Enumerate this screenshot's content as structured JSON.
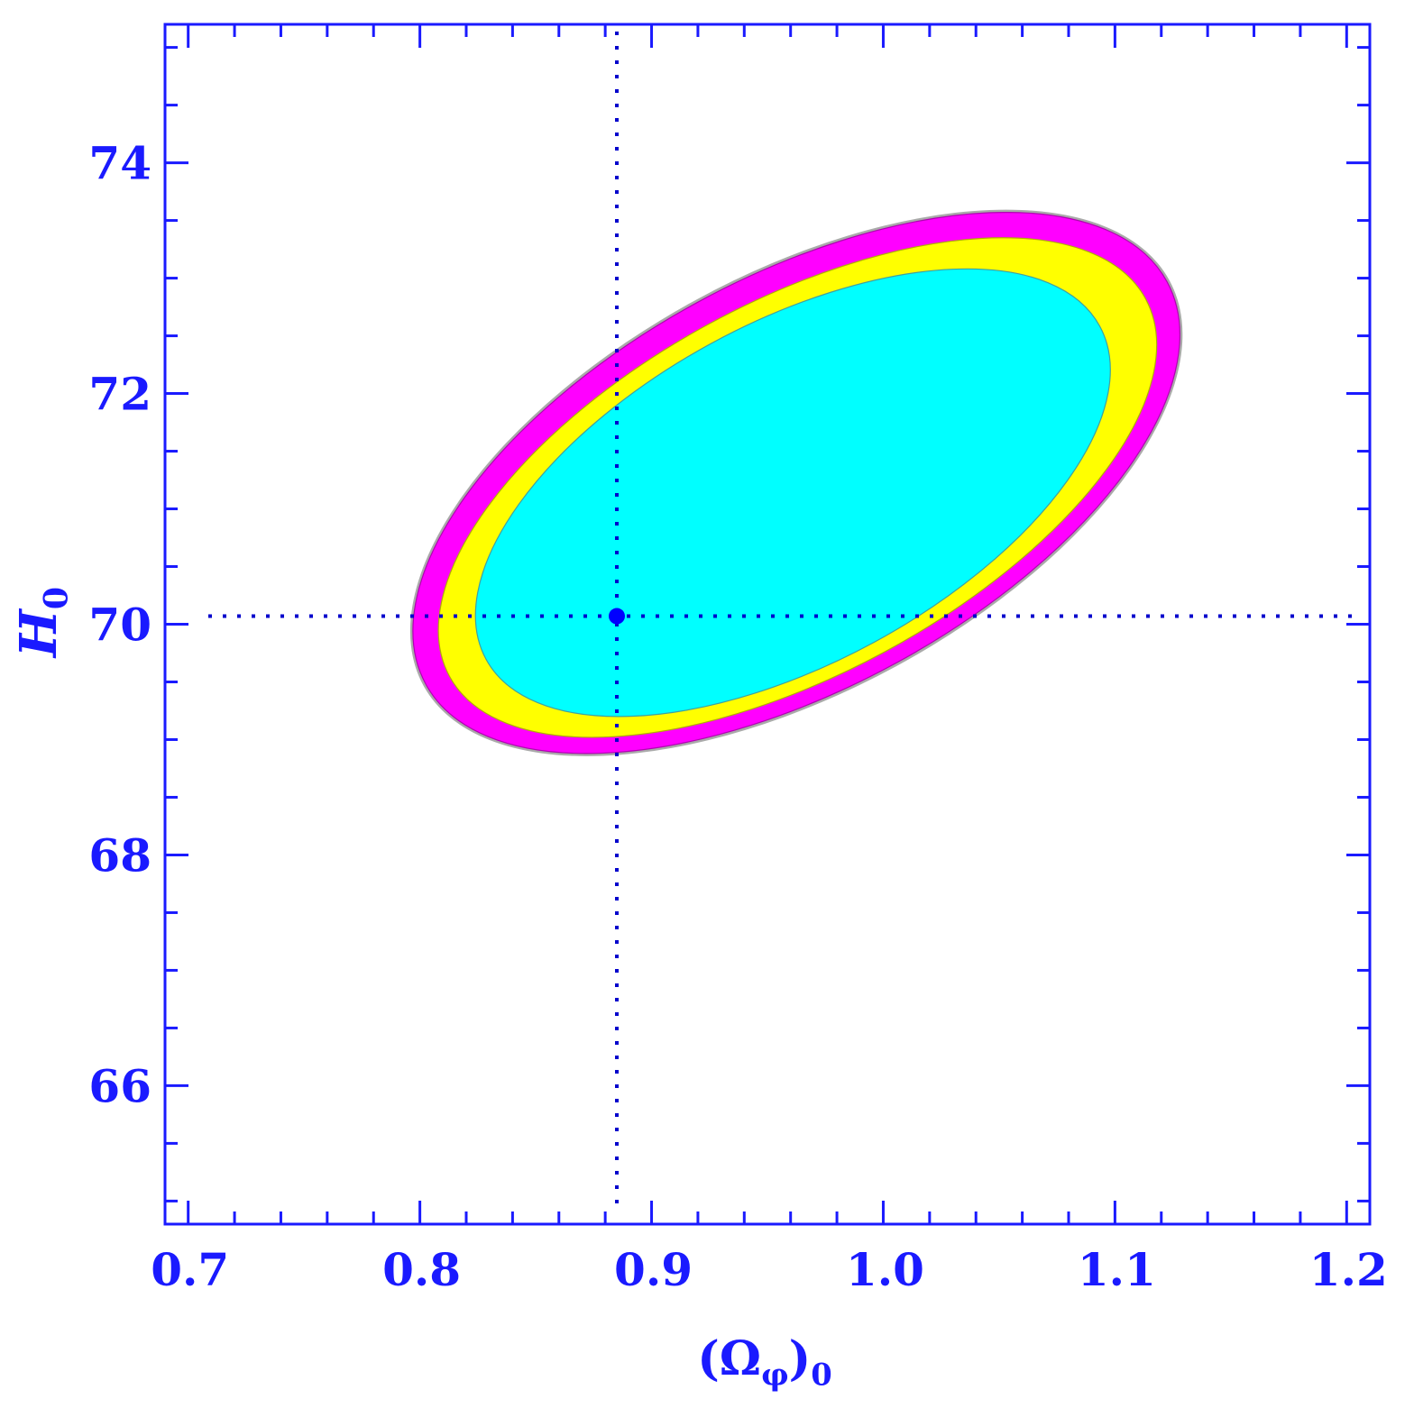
{
  "chart_data": {
    "type": "contour",
    "xlabel": "(Ωφ)0",
    "ylabel": "H0",
    "xlim": [
      0.69,
      1.21
    ],
    "ylim": [
      64.8,
      75.2
    ],
    "x_ticks": [
      0.7,
      0.8,
      0.9,
      1.0,
      1.1,
      1.2
    ],
    "x_tick_labels": [
      "0.7",
      "0.8",
      "0.9",
      "1.0",
      "1.1",
      "1.2"
    ],
    "y_ticks": [
      66,
      68,
      70,
      72,
      74
    ],
    "y_tick_labels": [
      "66",
      "68",
      "70",
      "72",
      "74"
    ],
    "grid": false,
    "best_fit": {
      "x": 0.885,
      "y": 70.07
    },
    "reference_lines": {
      "vertical_x": 0.885,
      "horizontal_y": 70.07,
      "style": "dotted"
    },
    "contours": [
      {
        "level": "outer",
        "color": "#ff00ff",
        "x_range": [
          0.797,
          1.128
        ],
        "y_range": [
          68.88,
          73.57
        ]
      },
      {
        "level": "middle",
        "color": "#ffff00",
        "x_range": [
          0.808,
          1.118
        ],
        "y_range": [
          69.02,
          73.35
        ]
      },
      {
        "level": "inner",
        "color": "#00ffff",
        "x_range": [
          0.824,
          1.098
        ],
        "y_range": [
          69.2,
          73.08
        ]
      }
    ],
    "colors": {
      "axis": "#1a1aff",
      "marker": "#0000ff",
      "edge": "#aaaaaa"
    }
  }
}
